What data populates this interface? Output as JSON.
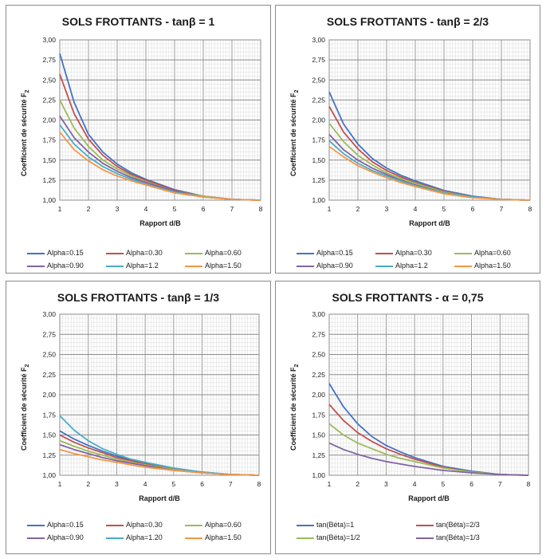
{
  "chart_data": [
    {
      "type": "line",
      "title": "SOLS FROTTANTS - tanβ = 1",
      "xlabel": "Rapport  d/B",
      "ylabel_main": "Coefficient de sécurité F",
      "ylabel_sub": "2",
      "xlim": [
        1,
        8
      ],
      "ylim": [
        1.0,
        3.0
      ],
      "x_ticks": [
        "1",
        "2",
        "3",
        "4",
        "5",
        "6",
        "7",
        "8"
      ],
      "y_ticks": [
        "1,00",
        "1,25",
        "1,50",
        "1,75",
        "2,00",
        "2,25",
        "2,50",
        "2,75",
        "3,00"
      ],
      "grid": true,
      "x": [
        1,
        1.5,
        2,
        2.5,
        3,
        3.5,
        4,
        5,
        6,
        7,
        8
      ],
      "series": [
        {
          "name": "Alpha=0.15",
          "color": "#4472c4",
          "values": [
            2.83,
            2.22,
            1.82,
            1.6,
            1.45,
            1.34,
            1.26,
            1.13,
            1.05,
            1.01,
            1.0
          ]
        },
        {
          "name": "Alpha=0.30",
          "color": "#c0504d",
          "values": [
            2.57,
            2.08,
            1.76,
            1.56,
            1.42,
            1.32,
            1.25,
            1.12,
            1.05,
            1.01,
            1.0
          ]
        },
        {
          "name": "Alpha=0.60",
          "color": "#9bbb59",
          "values": [
            2.25,
            1.9,
            1.67,
            1.5,
            1.39,
            1.3,
            1.23,
            1.11,
            1.05,
            1.01,
            1.0
          ]
        },
        {
          "name": "Alpha=0.90",
          "color": "#8064a2",
          "values": [
            2.05,
            1.78,
            1.6,
            1.46,
            1.36,
            1.28,
            1.22,
            1.11,
            1.04,
            1.01,
            1.0
          ]
        },
        {
          "name": "Alpha=1.2",
          "color": "#4bacc6",
          "values": [
            1.94,
            1.7,
            1.54,
            1.42,
            1.33,
            1.26,
            1.2,
            1.1,
            1.04,
            1.01,
            1.0
          ]
        },
        {
          "name": "Alpha=1.50",
          "color": "#f79646",
          "values": [
            1.85,
            1.63,
            1.49,
            1.38,
            1.3,
            1.24,
            1.19,
            1.09,
            1.04,
            1.01,
            1.0
          ]
        }
      ],
      "legend_columns": 3,
      "legend_position": "bottom"
    },
    {
      "type": "line",
      "title": "SOLS FROTTANTS - tanβ = 2/3",
      "xlabel": "Rapport  d/B",
      "ylabel_main": "Coefficient de sécurité F",
      "ylabel_sub": "2",
      "xlim": [
        1,
        8
      ],
      "ylim": [
        1.0,
        3.0
      ],
      "x_ticks": [
        "1",
        "2",
        "3",
        "4",
        "5",
        "6",
        "7",
        "8"
      ],
      "y_ticks": [
        "1,00",
        "1,25",
        "1,50",
        "1,75",
        "2,00",
        "2,25",
        "2,50",
        "2,75",
        "3,00"
      ],
      "grid": true,
      "x": [
        1,
        1.5,
        2,
        2.5,
        3,
        3.5,
        4,
        5,
        6,
        7,
        8
      ],
      "series": [
        {
          "name": "Alpha=0.15",
          "color": "#4472c4",
          "values": [
            2.35,
            1.95,
            1.7,
            1.52,
            1.4,
            1.31,
            1.24,
            1.12,
            1.05,
            1.01,
            1.0
          ]
        },
        {
          "name": "Alpha=0.30",
          "color": "#c0504d",
          "values": [
            2.17,
            1.85,
            1.64,
            1.48,
            1.37,
            1.29,
            1.22,
            1.11,
            1.04,
            1.01,
            1.0
          ]
        },
        {
          "name": "Alpha=0.60",
          "color": "#9bbb59",
          "values": [
            1.96,
            1.73,
            1.56,
            1.44,
            1.34,
            1.27,
            1.21,
            1.1,
            1.04,
            1.01,
            1.0
          ]
        },
        {
          "name": "Alpha=0.90",
          "color": "#8064a2",
          "values": [
            1.82,
            1.63,
            1.5,
            1.4,
            1.32,
            1.25,
            1.19,
            1.09,
            1.04,
            1.01,
            1.0
          ]
        },
        {
          "name": "Alpha=1.2",
          "color": "#4bacc6",
          "values": [
            1.74,
            1.58,
            1.46,
            1.37,
            1.3,
            1.24,
            1.18,
            1.09,
            1.04,
            1.01,
            1.0
          ]
        },
        {
          "name": "Alpha=1.50",
          "color": "#f79646",
          "values": [
            1.67,
            1.54,
            1.43,
            1.35,
            1.28,
            1.22,
            1.17,
            1.08,
            1.03,
            1.01,
            1.0
          ]
        }
      ],
      "legend_columns": 3,
      "legend_position": "bottom"
    },
    {
      "type": "line",
      "title": "SOLS FROTTANTS - tanβ = 1/3",
      "xlabel": "Rapport  d/B",
      "ylabel_main": "Coefficient de sécurité F",
      "ylabel_sub": "2",
      "xlim": [
        1,
        8
      ],
      "ylim": [
        1.0,
        3.0
      ],
      "x_ticks": [
        "1",
        "2",
        "3",
        "4",
        "5",
        "6",
        "7",
        "8"
      ],
      "y_ticks": [
        "1,00",
        "1,25",
        "1,50",
        "1,75",
        "2,00",
        "2,25",
        "2,50",
        "2,75",
        "3,00"
      ],
      "grid": true,
      "x": [
        1,
        1.5,
        2,
        2.5,
        3,
        3.5,
        4,
        5,
        6,
        7,
        8
      ],
      "series": [
        {
          "name": "Alpha=0.15",
          "color": "#4472c4",
          "values": [
            1.55,
            1.45,
            1.37,
            1.3,
            1.24,
            1.19,
            1.15,
            1.08,
            1.04,
            1.01,
            1.0
          ]
        },
        {
          "name": "Alpha=0.30",
          "color": "#c0504d",
          "values": [
            1.5,
            1.41,
            1.34,
            1.28,
            1.22,
            1.18,
            1.14,
            1.08,
            1.03,
            1.01,
            1.0
          ]
        },
        {
          "name": "Alpha=0.60",
          "color": "#9bbb59",
          "values": [
            1.43,
            1.36,
            1.3,
            1.25,
            1.2,
            1.16,
            1.13,
            1.07,
            1.03,
            1.01,
            1.0
          ]
        },
        {
          "name": "Alpha=0.90",
          "color": "#8064a2",
          "values": [
            1.38,
            1.32,
            1.27,
            1.22,
            1.18,
            1.15,
            1.12,
            1.06,
            1.03,
            1.01,
            1.0
          ]
        },
        {
          "name": "Alpha=1.20",
          "color": "#4bacc6",
          "values": [
            1.74,
            1.56,
            1.43,
            1.33,
            1.26,
            1.2,
            1.16,
            1.09,
            1.04,
            1.01,
            1.0
          ]
        },
        {
          "name": "Alpha=1.50",
          "color": "#f79646",
          "values": [
            1.32,
            1.27,
            1.23,
            1.19,
            1.16,
            1.13,
            1.1,
            1.06,
            1.03,
            1.01,
            1.0
          ]
        }
      ],
      "legend_columns": 3,
      "legend_position": "bottom"
    },
    {
      "type": "line",
      "title": "SOLS FROTTANTS - α = 0,75",
      "xlabel": "Rapport  d/B",
      "ylabel_main": "Coefficient de sécurité F",
      "ylabel_sub": "2",
      "xlim": [
        1,
        8
      ],
      "ylim": [
        1.0,
        3.0
      ],
      "x_ticks": [
        "1",
        "2",
        "3",
        "4",
        "5",
        "6",
        "7",
        "8"
      ],
      "y_ticks": [
        "1,00",
        "1,25",
        "1,50",
        "1,75",
        "2,00",
        "2,25",
        "2,50",
        "2,75",
        "3,00"
      ],
      "grid": true,
      "x": [
        1,
        1.5,
        2,
        2.5,
        3,
        3.5,
        4,
        5,
        6,
        7,
        8
      ],
      "series": [
        {
          "name": "tan(Béta)=1",
          "color": "#4472c4",
          "values": [
            2.14,
            1.85,
            1.64,
            1.48,
            1.37,
            1.29,
            1.22,
            1.11,
            1.05,
            1.01,
            1.0
          ]
        },
        {
          "name": "tan(Béta)=2/3",
          "color": "#c0504d",
          "values": [
            1.88,
            1.68,
            1.53,
            1.42,
            1.33,
            1.26,
            1.2,
            1.1,
            1.04,
            1.01,
            1.0
          ]
        },
        {
          "name": "tan(Béta)=1/2",
          "color": "#9bbb59",
          "values": [
            1.64,
            1.5,
            1.4,
            1.33,
            1.26,
            1.21,
            1.17,
            1.09,
            1.04,
            1.01,
            1.0
          ]
        },
        {
          "name": "tan(Béta)=1/3",
          "color": "#8064a2",
          "values": [
            1.4,
            1.32,
            1.26,
            1.21,
            1.17,
            1.14,
            1.11,
            1.06,
            1.03,
            1.01,
            1.0
          ]
        }
      ],
      "legend_columns": 2,
      "legend_position": "bottom"
    }
  ]
}
